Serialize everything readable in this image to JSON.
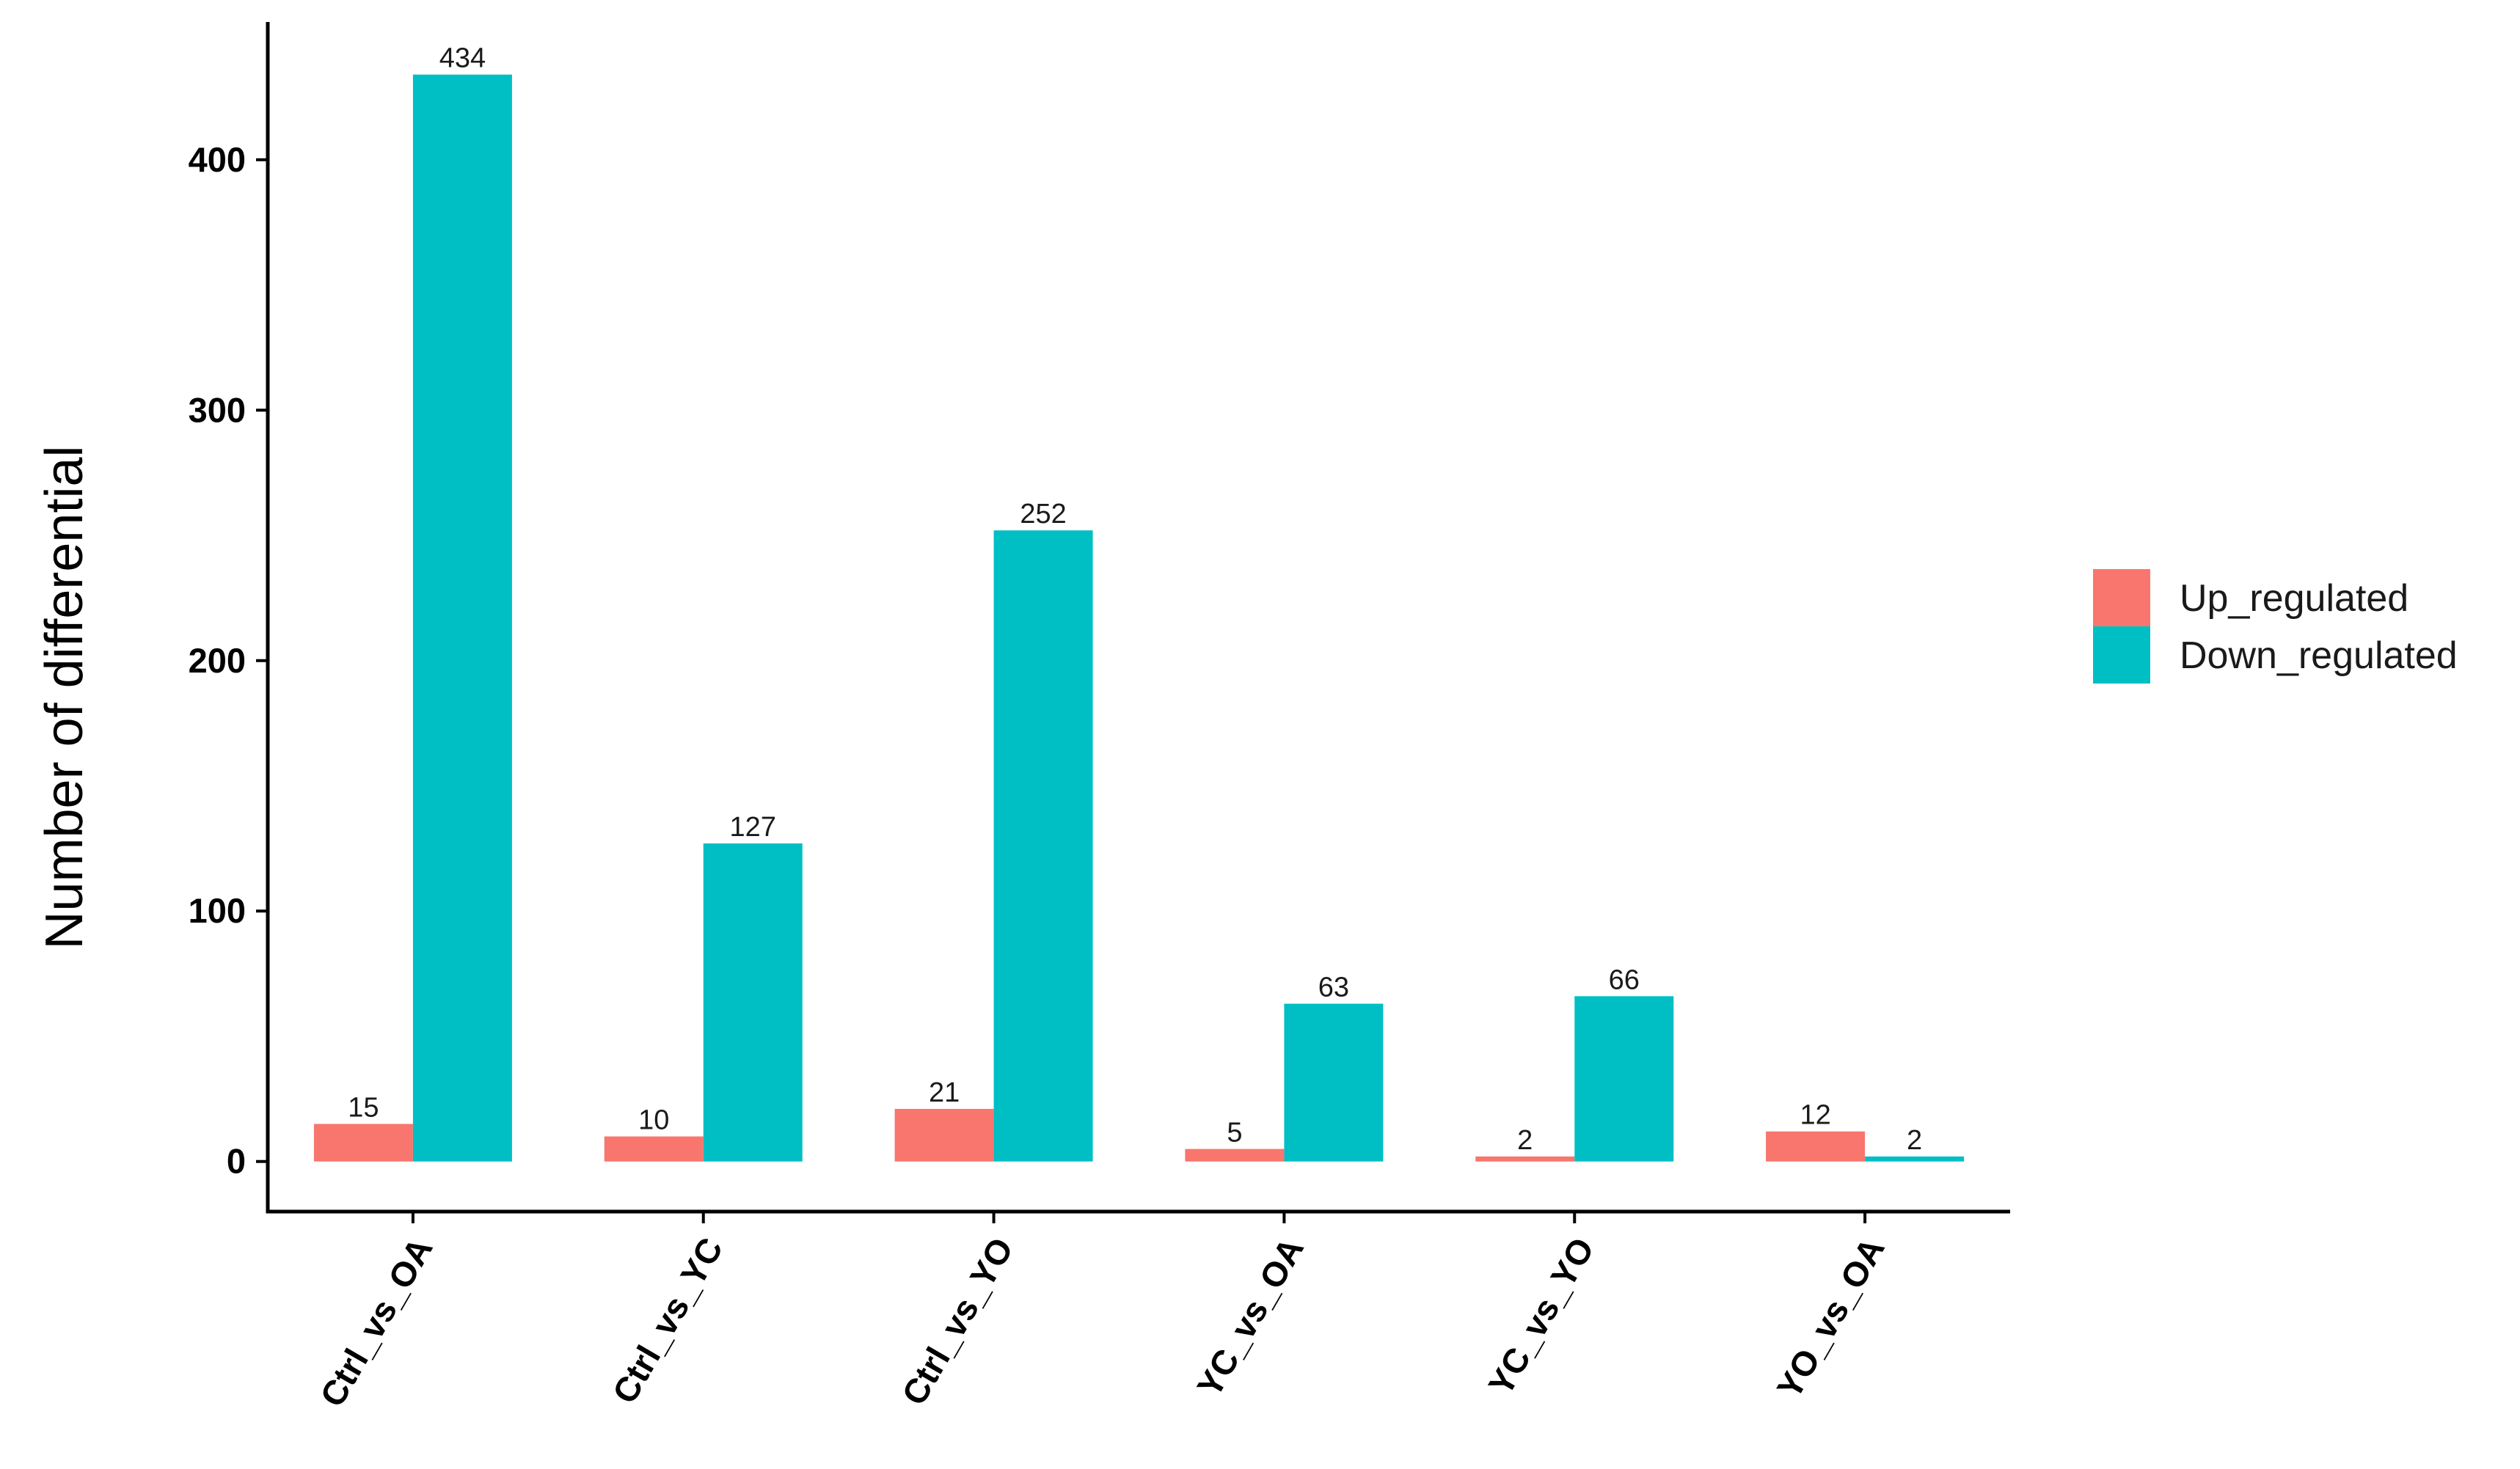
{
  "chart_data": {
    "type": "bar",
    "title": "",
    "xlabel": "",
    "ylabel": "Number of differential",
    "categories": [
      "Ctrl_vs_OA",
      "Ctrl_vs_YC",
      "Ctrl_vs_YO",
      "YC_vs_OA",
      "YC_vs_YO",
      "YO_vs_OA"
    ],
    "series": [
      {
        "name": "Up_regulated",
        "values": [
          15,
          10,
          21,
          5,
          2,
          12
        ],
        "color": "#F8766D"
      },
      {
        "name": "Down_regulated",
        "values": [
          434,
          127,
          252,
          63,
          66,
          2
        ],
        "color": "#00BFC4"
      }
    ],
    "ylim": [
      -20,
      455
    ],
    "yticks": [
      0,
      100,
      200,
      300,
      400
    ],
    "data_labels": true,
    "legend_position": "right",
    "grid": false,
    "x_tick_rotation": 60
  }
}
